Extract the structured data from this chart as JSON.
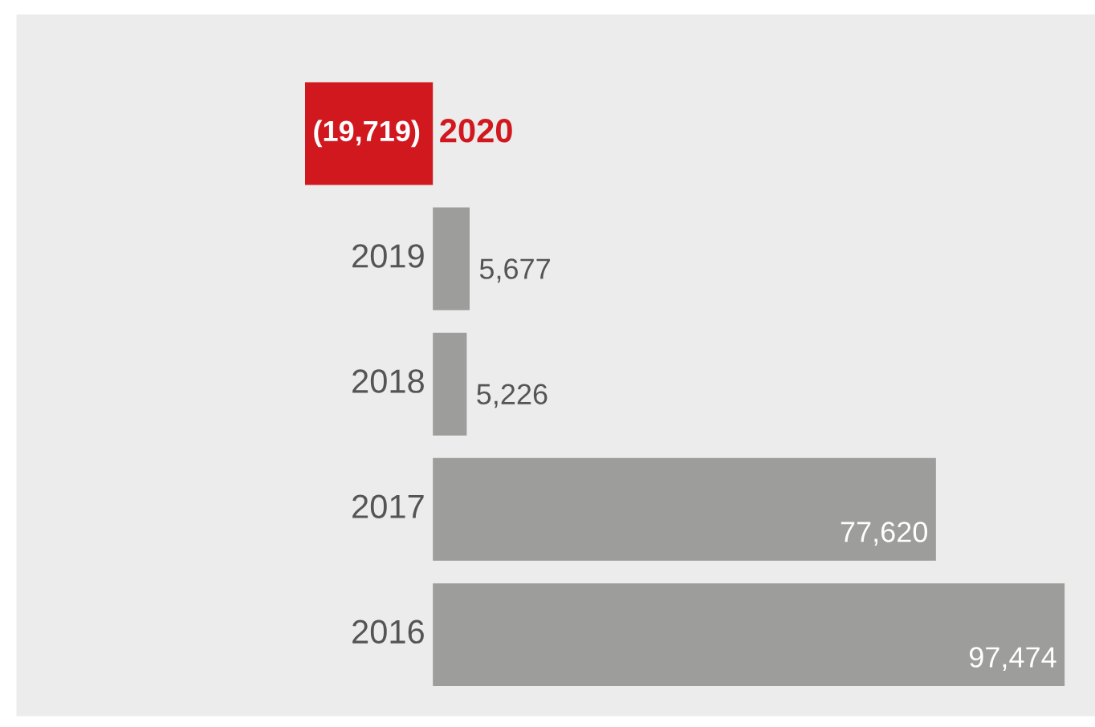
{
  "chart_data": {
    "type": "bar",
    "orientation": "horizontal",
    "categories": [
      "2020",
      "2019",
      "2018",
      "2017",
      "2016"
    ],
    "values": [
      -19719,
      5677,
      5226,
      77620,
      97474
    ],
    "value_labels": [
      "(19,719)",
      "5,677",
      "5,226",
      "77,620",
      "97,474"
    ],
    "colors": [
      "#d2181f",
      "#9d9d9b",
      "#9d9d9b",
      "#9d9d9b",
      "#9d9d9b"
    ]
  }
}
